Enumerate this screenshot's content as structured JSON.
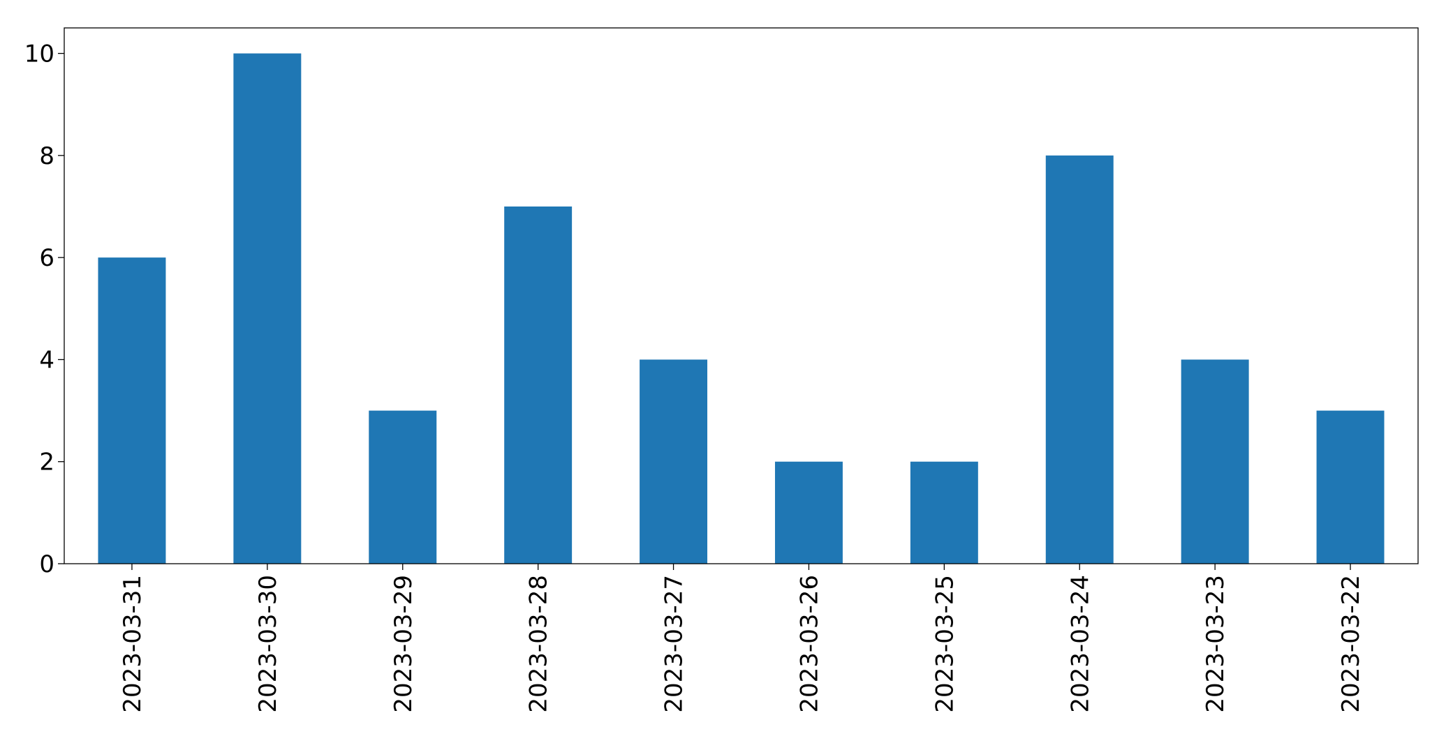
{
  "chart_data": {
    "type": "bar",
    "categories": [
      "2023-03-31",
      "2023-03-30",
      "2023-03-29",
      "2023-03-28",
      "2023-03-27",
      "2023-03-26",
      "2023-03-25",
      "2023-03-24",
      "2023-03-23",
      "2023-03-22"
    ],
    "values": [
      6,
      10,
      3,
      7,
      4,
      2,
      2,
      8,
      4,
      3
    ],
    "color": "#1f77b4",
    "ylim": [
      0,
      10.5
    ],
    "yticks": [
      0,
      2,
      4,
      6,
      8,
      10
    ],
    "grid": false
  }
}
